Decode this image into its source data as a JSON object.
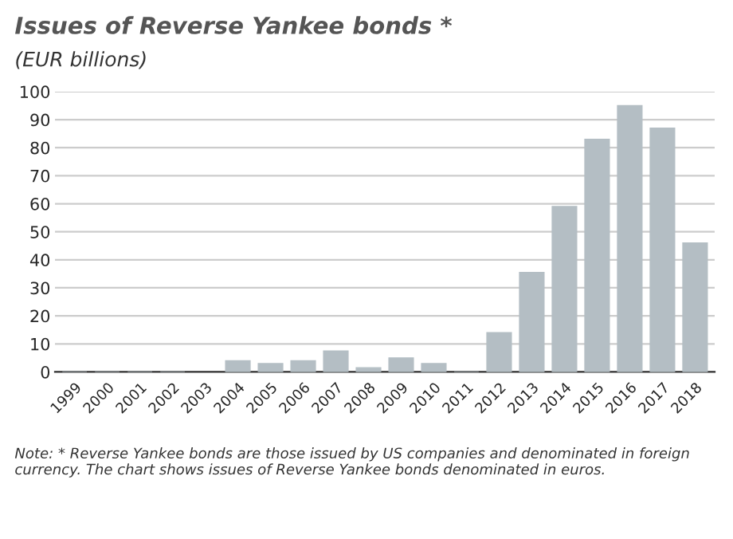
{
  "chart_data": {
    "type": "bar",
    "title": "Issues of Reverse Yankee bonds *",
    "subtitle": "(EUR billions)",
    "categories": [
      "1999",
      "2000",
      "2001",
      "2002",
      "2003",
      "2004",
      "2005",
      "2006",
      "2007",
      "2008",
      "2009",
      "2010",
      "2011",
      "2012",
      "2013",
      "2014",
      "2015",
      "2016",
      "2017",
      "2018"
    ],
    "values": [
      0,
      0,
      0,
      0,
      null,
      4,
      3,
      4,
      7.5,
      1.5,
      5,
      3,
      0,
      14,
      35.5,
      59,
      83,
      95,
      87,
      46
    ],
    "color": "#b4bec4",
    "ylim": [
      0,
      100
    ],
    "yticks": [
      0,
      10,
      20,
      30,
      40,
      50,
      60,
      70,
      80,
      90,
      100
    ],
    "grid": "y",
    "annotations": [
      "Note: * Reverse Yankee bonds are those issued by US companies and denominated in foreign currency. The chart shows issues of Reverse Yankee bonds denominated in euros."
    ]
  }
}
